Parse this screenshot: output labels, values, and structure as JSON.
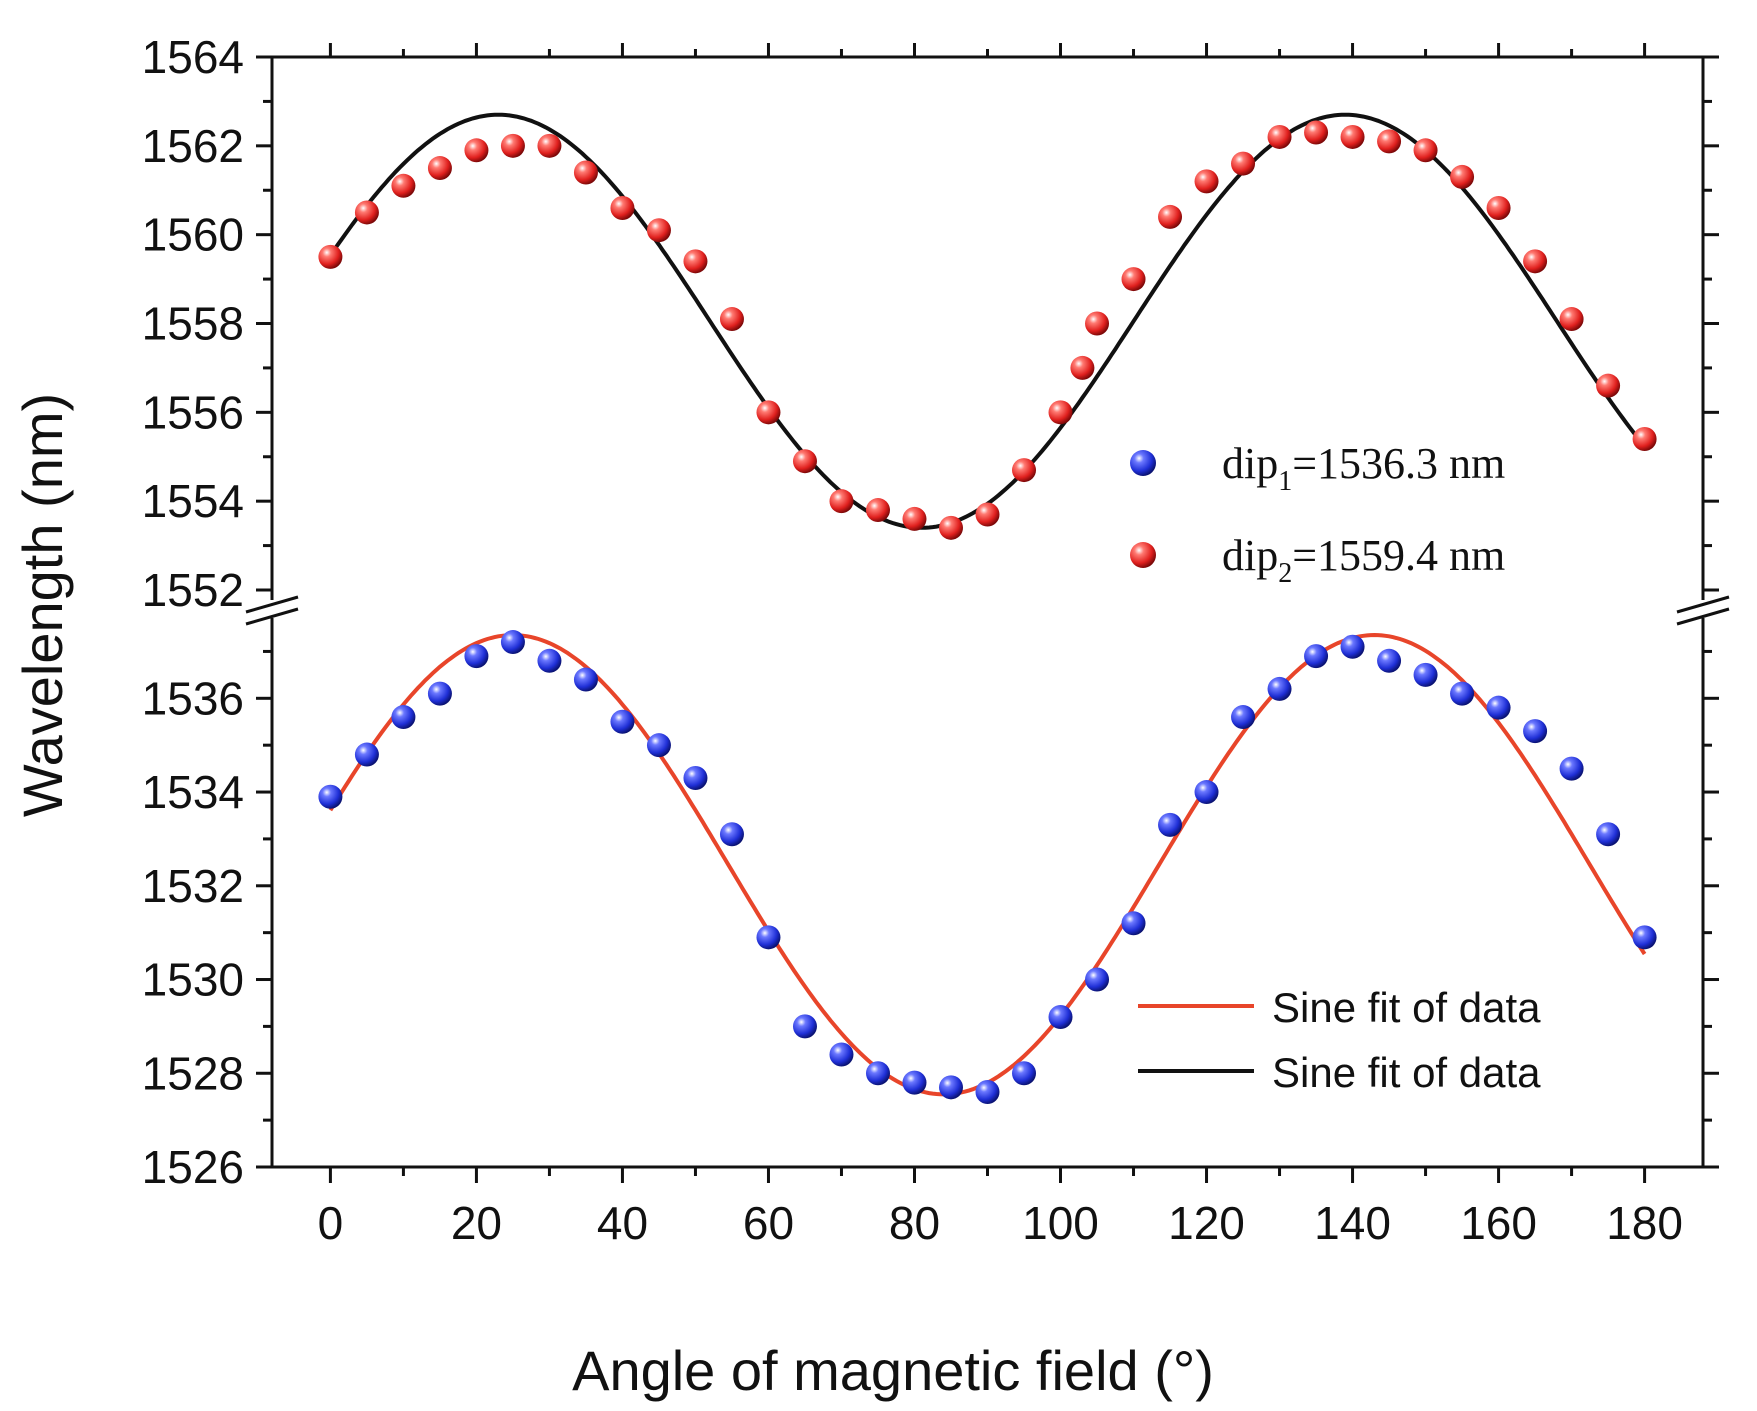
{
  "chart_data": {
    "type": "scatter",
    "xlabel": "Angle of magnetic field (°)",
    "ylabel": "Wavelength (nm)",
    "xlim": [
      -8,
      188
    ],
    "x_ticks": [
      0,
      20,
      40,
      60,
      80,
      100,
      120,
      140,
      160,
      180
    ],
    "broken_y_axis": true,
    "upper_panel": {
      "ylim": [
        1552,
        1564
      ],
      "y_ticks": [
        1552,
        1554,
        1556,
        1558,
        1560,
        1562,
        1564
      ]
    },
    "lower_panel": {
      "ylim": [
        1526,
        1537.5
      ],
      "y_ticks": [
        1526,
        1528,
        1530,
        1532,
        1534,
        1536
      ]
    },
    "series": [
      {
        "name": "dip1",
        "panel": "lower",
        "color": "#1f2fd6",
        "x": [
          0,
          5,
          10,
          15,
          20,
          25,
          30,
          35,
          40,
          45,
          50,
          55,
          60,
          65,
          70,
          75,
          80,
          85,
          90,
          95,
          100,
          105,
          110,
          115,
          120,
          125,
          130,
          135,
          140,
          145,
          150,
          155,
          160,
          165,
          170,
          175,
          180
        ],
        "y": [
          1533.9,
          1534.8,
          1535.6,
          1536.1,
          1536.9,
          1537.2,
          1536.8,
          1536.4,
          1535.5,
          1535.0,
          1534.3,
          1533.1,
          1530.9,
          1529.0,
          1528.4,
          1528.0,
          1527.8,
          1527.7,
          1527.6,
          1528.0,
          1529.2,
          1530.0,
          1531.2,
          1533.3,
          1534.0,
          1535.6,
          1536.2,
          1536.9,
          1537.1,
          1536.8,
          1536.5,
          1536.1,
          1535.8,
          1535.3,
          1534.5,
          1533.1,
          1530.9
        ]
      },
      {
        "name": "dip2",
        "panel": "upper",
        "color": "#e0201e",
        "x": [
          0,
          5,
          10,
          15,
          20,
          25,
          30,
          35,
          40,
          45,
          50,
          55,
          60,
          65,
          70,
          75,
          80,
          85,
          90,
          95,
          100,
          103,
          105,
          110,
          115,
          120,
          125,
          130,
          135,
          140,
          145,
          150,
          155,
          160,
          165,
          170,
          175,
          180
        ],
        "y": [
          1559.5,
          1560.5,
          1561.1,
          1561.5,
          1561.9,
          1562.0,
          1562.0,
          1561.4,
          1560.6,
          1560.1,
          1559.4,
          1558.1,
          1556.0,
          1554.9,
          1554.0,
          1553.8,
          1553.6,
          1553.4,
          1553.7,
          1554.7,
          1556.0,
          1557.0,
          1558.0,
          1559.0,
          1560.4,
          1561.2,
          1561.6,
          1562.2,
          1562.3,
          1562.2,
          1562.1,
          1561.9,
          1561.3,
          1560.6,
          1559.4,
          1558.1,
          1556.6,
          1555.4
        ]
      }
    ],
    "fits": [
      {
        "name": "Sine fit of data",
        "panel": "lower",
        "color": "#e8452a",
        "offset": 1532.45,
        "amplitude": 4.9,
        "period": 118,
        "peak_x": 25
      },
      {
        "name": "Sine fit of data",
        "panel": "upper",
        "color": "#111111",
        "offset": 1558.05,
        "amplitude": 4.65,
        "period": 116,
        "peak_x": 23
      }
    ],
    "legend": {
      "placement": "right",
      "markers": [
        {
          "prefix": "dip",
          "subscript": "1",
          "suffix": "=1536.3 nm",
          "color": "#1f2fd6"
        },
        {
          "prefix": "dip",
          "subscript": "2",
          "suffix": "=1559.4 nm",
          "color": "#e0201e"
        }
      ],
      "lines": [
        {
          "label": "Sine fit of data",
          "color": "#e8452a"
        },
        {
          "label": "Sine fit of data",
          "color": "#111111"
        }
      ]
    }
  }
}
